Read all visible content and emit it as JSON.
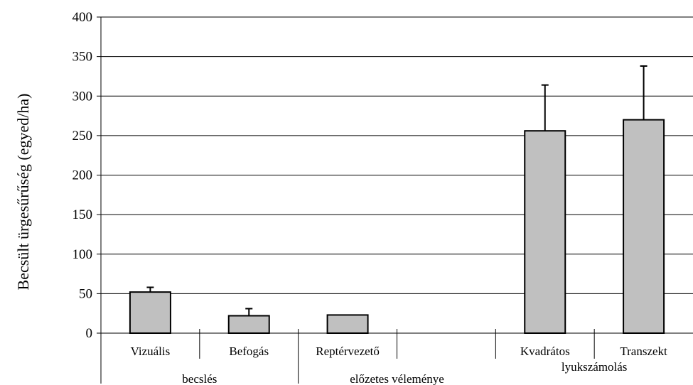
{
  "chart_data": {
    "type": "bar",
    "title": "",
    "ylabel": "Becsült ürgesűrűség (egyed/ha)",
    "ylim": [
      0,
      400
    ],
    "yticks": [
      0,
      50,
      100,
      150,
      200,
      250,
      300,
      350,
      400
    ],
    "grid": true,
    "categories": [
      "Vizuális",
      "Befogás",
      "Reptérvezető",
      "",
      "Kvadrátos",
      "Transzekt"
    ],
    "values": [
      52,
      22,
      23,
      null,
      256,
      270
    ],
    "error_plus": [
      6,
      9,
      0,
      null,
      58,
      68
    ],
    "groups": [
      {
        "label": "becslés",
        "from": 0,
        "to": 1
      },
      {
        "label": "előzetes véleménye",
        "from": 2,
        "to": 3
      },
      {
        "label": "lyukszámolás",
        "from": 4,
        "to": 5
      }
    ],
    "colors": {
      "bar_fill": "#c0c0c0",
      "bar_stroke": "#000000",
      "grid": "#000000"
    }
  }
}
